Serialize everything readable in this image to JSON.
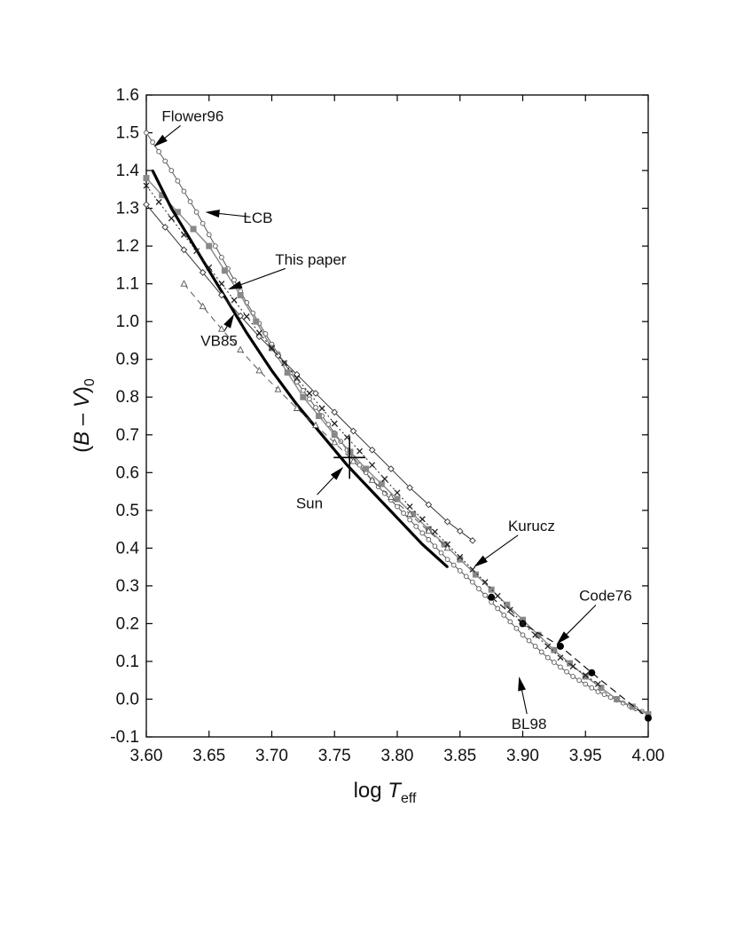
{
  "chart_data": {
    "type": "line",
    "title": "",
    "xlabel": {
      "prefix": "log ",
      "var": "T",
      "sub": "eff"
    },
    "ylabel": {
      "prefix": "(",
      "var1": "B",
      "dash": " – ",
      "var2": "V",
      "suffix": ")",
      "sub": "0"
    },
    "xlim": [
      3.6,
      4.0
    ],
    "ylim": [
      -0.1,
      1.6
    ],
    "xticks": [
      "3.60",
      "3.65",
      "3.70",
      "3.75",
      "3.80",
      "3.85",
      "3.90",
      "3.95",
      "4.00"
    ],
    "xtick_values": [
      3.6,
      3.65,
      3.7,
      3.75,
      3.8,
      3.85,
      3.9,
      3.95,
      4.0
    ],
    "yticks": [
      "-0.1",
      "0.0",
      "0.1",
      "0.2",
      "0.3",
      "0.4",
      "0.5",
      "0.6",
      "0.7",
      "0.8",
      "0.9",
      "1.0",
      "1.1",
      "1.2",
      "1.3",
      "1.4",
      "1.5",
      "1.6"
    ],
    "ytick_values": [
      -0.1,
      0.0,
      0.1,
      0.2,
      0.3,
      0.4,
      0.5,
      0.6,
      0.7,
      0.8,
      0.9,
      1.0,
      1.1,
      1.2,
      1.3,
      1.4,
      1.5,
      1.6
    ],
    "grid": false,
    "series": [
      {
        "name": "Flower96",
        "style": "open-circles",
        "color": "#555555",
        "x": [
          3.6,
          3.62,
          3.64,
          3.66,
          3.68,
          3.7,
          3.72,
          3.74,
          3.76,
          3.78,
          3.8,
          3.82,
          3.84,
          3.86,
          3.88,
          3.9,
          3.92,
          3.94,
          3.96,
          3.98,
          4.0
        ],
        "y": [
          1.5,
          1.4,
          1.29,
          1.17,
          1.05,
          0.94,
          0.84,
          0.75,
          0.66,
          0.58,
          0.51,
          0.44,
          0.37,
          0.31,
          0.24,
          0.17,
          0.11,
          0.06,
          0.02,
          -0.01,
          -0.04
        ]
      },
      {
        "name": "LCB",
        "style": "grey-squares",
        "color": "#888888",
        "x": [
          3.6,
          3.625,
          3.65,
          3.675,
          3.7,
          3.725,
          3.75,
          3.775,
          3.8,
          3.825,
          3.85,
          3.875,
          3.9,
          3.925,
          3.95,
          3.975,
          4.0
        ],
        "y": [
          1.38,
          1.29,
          1.2,
          1.07,
          0.93,
          0.8,
          0.7,
          0.61,
          0.53,
          0.45,
          0.37,
          0.29,
          0.21,
          0.13,
          0.06,
          0.0,
          -0.04
        ]
      },
      {
        "name": "This paper",
        "style": "thick-line",
        "color": "#000000",
        "x": [
          3.605,
          3.62,
          3.64,
          3.66,
          3.68,
          3.7,
          3.72,
          3.74,
          3.76,
          3.78,
          3.8,
          3.82,
          3.84
        ],
        "y": [
          1.4,
          1.3,
          1.19,
          1.08,
          0.97,
          0.87,
          0.78,
          0.7,
          0.62,
          0.55,
          0.48,
          0.41,
          0.35
        ]
      },
      {
        "name": "VB85",
        "style": "dashed-triangles",
        "color": "#555555",
        "x": [
          3.63,
          3.66,
          3.69,
          3.72,
          3.75,
          3.78,
          3.81,
          3.84
        ],
        "y": [
          1.1,
          0.98,
          0.87,
          0.77,
          0.68,
          0.58,
          0.49,
          0.4
        ]
      },
      {
        "name": "Kurucz",
        "style": "thin-line-diamonds",
        "color": "#333333",
        "x": [
          3.6,
          3.63,
          3.66,
          3.69,
          3.72,
          3.75,
          3.78,
          3.81,
          3.84,
          3.86
        ],
        "y": [
          1.31,
          1.19,
          1.07,
          0.96,
          0.86,
          0.76,
          0.66,
          0.56,
          0.47,
          0.42
        ]
      },
      {
        "name": "Code76",
        "style": "dashed-filled-circles",
        "color": "#000000",
        "x": [
          3.875,
          3.9,
          3.93,
          3.955,
          4.0
        ],
        "y": [
          0.27,
          0.2,
          0.14,
          0.07,
          -0.05
        ]
      },
      {
        "name": "BL98",
        "style": "dotted-crosses",
        "color": "#222222",
        "x": [
          3.6,
          3.63,
          3.66,
          3.69,
          3.72,
          3.75,
          3.78,
          3.81,
          3.84,
          3.87,
          3.9,
          3.93,
          3.96
        ],
        "y": [
          1.36,
          1.23,
          1.1,
          0.97,
          0.85,
          0.73,
          0.62,
          0.51,
          0.41,
          0.31,
          0.2,
          0.11,
          0.04
        ]
      }
    ],
    "sun": {
      "x": 3.762,
      "y": 0.64
    },
    "annotations": [
      {
        "text": "Flower96",
        "tx": 3.637,
        "ty": 1.545,
        "ax": 3.606,
        "ay": 1.463
      },
      {
        "text": "LCB",
        "tx": 3.689,
        "ty": 1.275,
        "ax": 3.647,
        "ay": 1.29
      },
      {
        "text": "This paper",
        "tx": 3.731,
        "ty": 1.165,
        "ax": 3.665,
        "ay": 1.085
      },
      {
        "text": "VB85",
        "tx": 3.658,
        "ty": 0.95,
        "ax": 3.67,
        "ay": 1.02
      },
      {
        "text": "Sun",
        "tx": 3.73,
        "ty": 0.52,
        "ax": 3.757,
        "ay": 0.615
      },
      {
        "text": "Kurucz",
        "tx": 3.907,
        "ty": 0.46,
        "ax": 3.861,
        "ay": 0.35
      },
      {
        "text": "Code76",
        "tx": 3.966,
        "ty": 0.275,
        "ax": 3.927,
        "ay": 0.145
      },
      {
        "text": "BL98",
        "tx": 3.905,
        "ty": -0.065,
        "ax": 3.897,
        "ay": 0.06
      }
    ]
  }
}
